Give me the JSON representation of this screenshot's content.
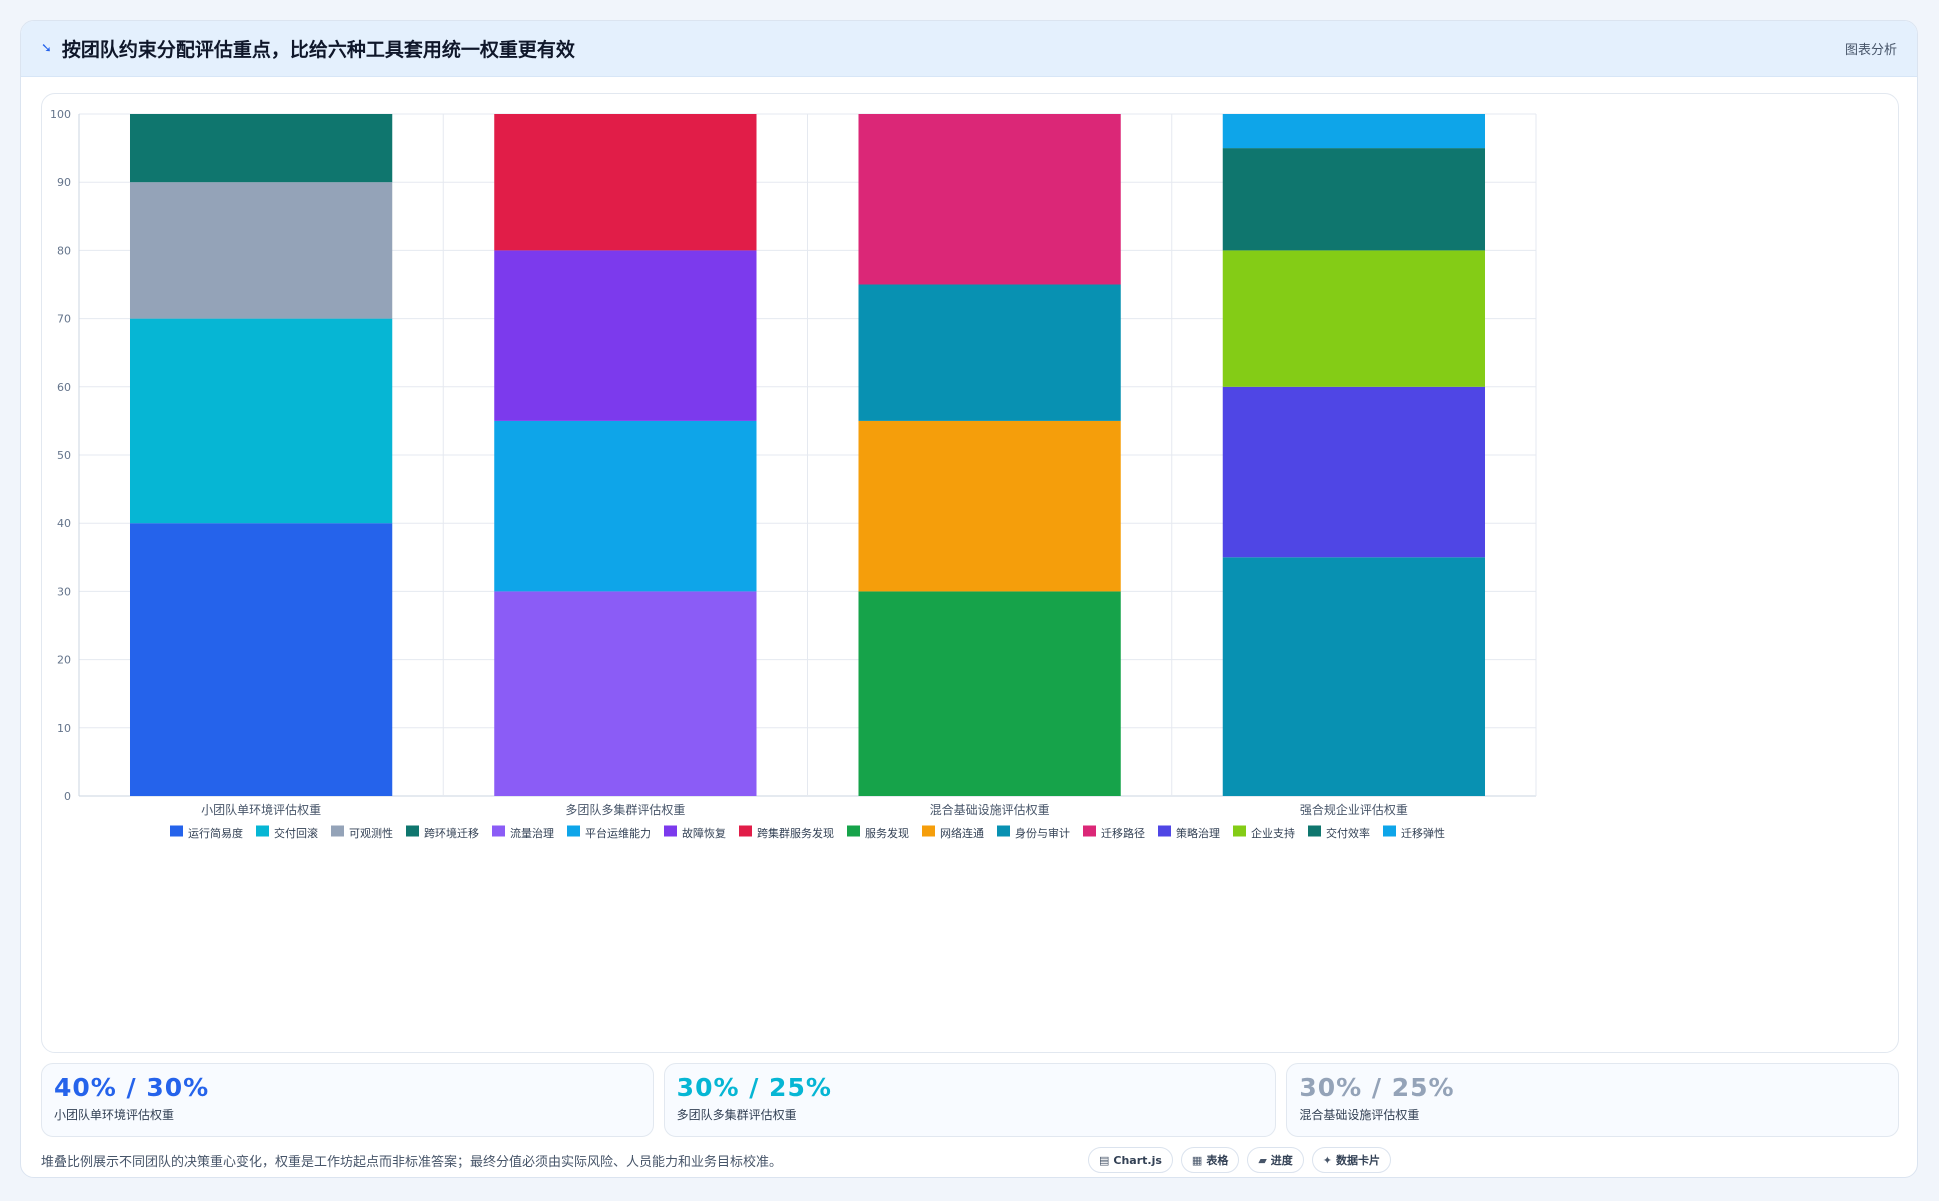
{
  "header": {
    "icon": "chart-trend-icon",
    "title": "按团队约束分配评估重点，比给六种工具套用统一权重更有效",
    "tag": "图表分析"
  },
  "chart_data": {
    "type": "bar",
    "stacked": true,
    "categories": [
      "小团队单环境评估权重",
      "多团队多集群评估权重",
      "混合基础设施评估权重",
      "强合规企业评估权重"
    ],
    "ylim": [
      0,
      100
    ],
    "yticks": [
      0,
      10,
      20,
      30,
      40,
      50,
      60,
      70,
      80,
      90,
      100
    ],
    "grid": true,
    "legend_position": "bottom",
    "series": [
      {
        "name": "运行简易度",
        "color": "#2563eb",
        "values": [
          40,
          0,
          0,
          0
        ]
      },
      {
        "name": "交付回滚",
        "color": "#06b6d4",
        "values": [
          30,
          0,
          0,
          0
        ]
      },
      {
        "name": "可观测性",
        "color": "#94a3b8",
        "values": [
          20,
          0,
          0,
          0
        ]
      },
      {
        "name": "跨环境迁移",
        "color": "#0f766e",
        "values": [
          10,
          0,
          0,
          0
        ]
      },
      {
        "name": "流量治理",
        "color": "#8b5cf6",
        "values": [
          0,
          30,
          0,
          0
        ]
      },
      {
        "name": "平台运维能力",
        "color": "#0ea5e9",
        "values": [
          0,
          25,
          0,
          0
        ]
      },
      {
        "name": "故障恢复",
        "color": "#7c3aed",
        "values": [
          0,
          25,
          0,
          0
        ]
      },
      {
        "name": "跨集群服务发现",
        "color": "#e11d48",
        "values": [
          0,
          20,
          0,
          0
        ]
      },
      {
        "name": "服务发现",
        "color": "#16a34a",
        "values": [
          0,
          0,
          30,
          0
        ]
      },
      {
        "name": "网络连通",
        "color": "#f59e0b",
        "values": [
          0,
          0,
          25,
          0
        ]
      },
      {
        "name": "身份与审计",
        "color": "#0891b2",
        "values": [
          0,
          0,
          20,
          35
        ]
      },
      {
        "name": "迁移路径",
        "color": "#db2777",
        "values": [
          0,
          0,
          25,
          0
        ]
      },
      {
        "name": "策略治理",
        "color": "#4f46e5",
        "values": [
          0,
          0,
          0,
          25
        ]
      },
      {
        "name": "企业支持",
        "color": "#84cc16",
        "values": [
          0,
          0,
          0,
          20
        ]
      },
      {
        "name": "交付效率",
        "color": "#0f766e",
        "values": [
          0,
          0,
          0,
          15
        ]
      },
      {
        "name": "迁移弹性",
        "color": "#0ea5e9",
        "values": [
          0,
          0,
          0,
          5
        ]
      }
    ]
  },
  "stats": [
    {
      "value": "40% / 30%",
      "label": "小团队单环境评估权重",
      "color": "#2563eb"
    },
    {
      "value": "30% / 25%",
      "label": "多团队多集群评估权重",
      "color": "#06b6d4"
    },
    {
      "value": "30% / 25%",
      "label": "混合基础设施评估权重",
      "color": "#94a3b8"
    }
  ],
  "footer": {
    "note": "堆叠比例展示不同团队的决策重心变化，权重是工作坊起点而非标准答案；最终分值必须由实际风险、人员能力和业务目标校准。",
    "chips": [
      {
        "icon": "chart-icon",
        "glyph": "▤",
        "label": "Chart.js"
      },
      {
        "icon": "table-icon",
        "glyph": "▦",
        "label": "表格"
      },
      {
        "icon": "progress-icon",
        "glyph": "▰",
        "label": "进度"
      },
      {
        "icon": "sparkle-icon",
        "glyph": "✦",
        "label": "数据卡片"
      }
    ]
  }
}
